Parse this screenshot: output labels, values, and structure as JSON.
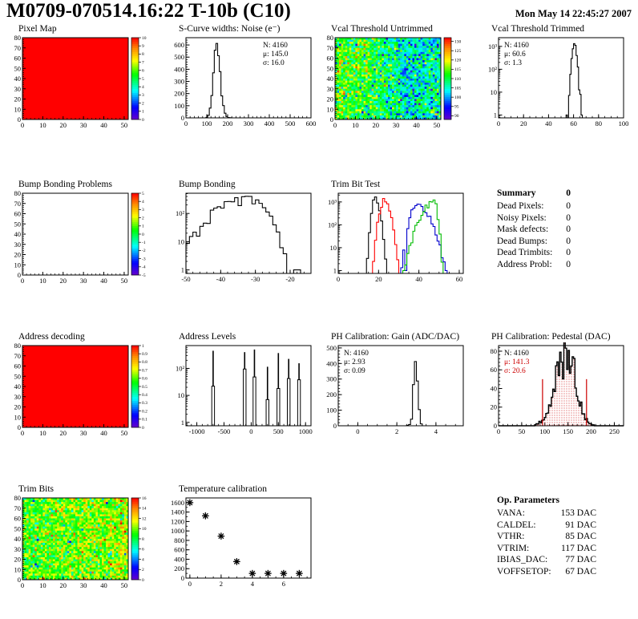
{
  "header": {
    "title": "M0709-070514.16:22 T-10b (C10)",
    "date": "Mon May 14 22:45:27 2007"
  },
  "summary": {
    "title": "Summary",
    "total": "0",
    "rows": [
      {
        "label": "Dead Pixels:",
        "value": "0"
      },
      {
        "label": "Noisy Pixels:",
        "value": "0"
      },
      {
        "label": "Mask defects:",
        "value": "0"
      },
      {
        "label": "Dead Bumps:",
        "value": "0"
      },
      {
        "label": "Dead Trimbits:",
        "value": "0"
      },
      {
        "label": "Address Probl:",
        "value": "0"
      }
    ]
  },
  "op_parameters": {
    "title": "Op. Parameters",
    "rows": [
      {
        "label": "VANA:",
        "value": "153 DAC"
      },
      {
        "label": "CALDEL:",
        "value": "91 DAC"
      },
      {
        "label": "VTHR:",
        "value": "85 DAC"
      },
      {
        "label": "VTRIM:",
        "value": "117 DAC"
      },
      {
        "label": "IBIAS_DAC:",
        "value": "77 DAC"
      },
      {
        "label": "VOFFSETOP:",
        "value": "67 DAC"
      }
    ]
  },
  "chart_data": [
    {
      "id": "pixel-map",
      "type": "heatmap",
      "title": "Pixel Map",
      "mode": "uniform",
      "uniform_value": 1.0,
      "xmax": 52,
      "ymax": 80,
      "xticks": [
        0,
        10,
        20,
        30,
        40,
        50
      ],
      "yticks": [
        0,
        10,
        20,
        30,
        40,
        50,
        60,
        70,
        80
      ],
      "colorbar": {
        "min": 0,
        "max": 10,
        "ticks": [
          {
            "v": 10,
            "l": "10"
          },
          {
            "v": 9,
            "l": "9"
          },
          {
            "v": 8,
            "l": "8"
          },
          {
            "v": 7,
            "l": "7"
          },
          {
            "v": 6,
            "l": "6"
          },
          {
            "v": 5,
            "l": "5"
          },
          {
            "v": 4,
            "l": "4"
          },
          {
            "v": 3,
            "l": "3"
          },
          {
            "v": 2,
            "l": "2"
          },
          {
            "v": 1,
            "l": "1"
          },
          {
            "v": 0,
            "l": "0"
          }
        ]
      }
    },
    {
      "id": "scurve-noise",
      "type": "hist",
      "title": "S-Curve widths: Noise (e⁻)",
      "log": false,
      "xmin": 0,
      "xmax": 600,
      "xticks": [
        0,
        100,
        200,
        300,
        400,
        500,
        600
      ],
      "xminor": 20,
      "ymax": 660,
      "yticks": [
        0,
        100,
        200,
        300,
        400,
        500,
        600
      ],
      "yminor": 20,
      "series": [
        {
          "color": "#000000",
          "mu": 145,
          "sigmaL": 14,
          "sigmaR": 18,
          "peak": 645,
          "binw": 8,
          "noise": 0.18,
          "seed": 11
        }
      ],
      "stats": {
        "side": "right",
        "lines": [
          {
            "text": "N: 4160",
            "color": "#000000"
          },
          {
            "text": "μ: 145.0",
            "color": "#000000"
          },
          {
            "text": "σ: 16.0",
            "color": "#000000"
          }
        ]
      }
    },
    {
      "id": "vcal-threshold-untrimmed",
      "type": "heatmap",
      "title": "Vcal Threshold Untrimmed",
      "mode": "noise",
      "seed": 42,
      "base": 110,
      "sd": 5.5,
      "cmin": 88,
      "cmax": 132,
      "xmax": 52,
      "ymax": 80,
      "xticks": [
        0,
        10,
        20,
        30,
        40,
        50
      ],
      "yticks": [
        0,
        10,
        20,
        30,
        40,
        50,
        60,
        70,
        80
      ],
      "colorbar": {
        "min": 88,
        "max": 132,
        "ticks": [
          {
            "v": 130,
            "l": "130"
          },
          {
            "v": 125,
            "l": "125"
          },
          {
            "v": 120,
            "l": "120"
          },
          {
            "v": 115,
            "l": "115"
          },
          {
            "v": 110,
            "l": "110"
          },
          {
            "v": 105,
            "l": "105"
          },
          {
            "v": 100,
            "l": "100"
          },
          {
            "v": 95,
            "l": "95"
          },
          {
            "v": 90,
            "l": "90"
          }
        ]
      }
    },
    {
      "id": "vcal-threshold-trimmed",
      "type": "hist",
      "title": "Vcal Threshold Trimmed",
      "log": true,
      "xmin": 0,
      "xmax": 100,
      "xticks": [
        0,
        20,
        40,
        60,
        80,
        100
      ],
      "xminor": 5,
      "ylim": [
        0.75,
        2400
      ],
      "log_ticks": [
        {
          "v": 1,
          "l": "1"
        },
        {
          "v": 10,
          "l": "10"
        },
        {
          "v": 100,
          "l": "10²"
        },
        {
          "v": 1000,
          "l": "10³"
        }
      ],
      "series": [
        {
          "color": "#000000",
          "mu": 60.6,
          "sigmaL": 1.3,
          "sigmaR": 1.3,
          "peak": 1276,
          "binw": 1,
          "noise": 0.2,
          "seed": 21,
          "extra": [
            [
              54,
              1
            ],
            [
              65,
              8
            ],
            [
              66,
              1
            ]
          ]
        }
      ],
      "stats": {
        "side": "left",
        "lines": [
          {
            "text": "N: 4160",
            "color": "#000000"
          },
          {
            "text": "μ: 60.6",
            "color": "#000000"
          },
          {
            "text": "σ:  1.3",
            "color": "#000000"
          }
        ]
      }
    },
    {
      "id": "bump-bonding-problems",
      "type": "heatmap",
      "title": "Bump Bonding Problems",
      "mode": "empty",
      "xmax": 52,
      "ymax": 80,
      "xticks": [
        0,
        10,
        20,
        30,
        40,
        50
      ],
      "yticks": [
        0,
        10,
        20,
        30,
        40,
        50,
        60,
        70,
        80
      ],
      "colorbar": {
        "min": -5,
        "max": 5,
        "ticks": [
          {
            "v": 5,
            "l": "5"
          },
          {
            "v": 4,
            "l": "4"
          },
          {
            "v": 3,
            "l": "3"
          },
          {
            "v": 2,
            "l": "2"
          },
          {
            "v": 1,
            "l": "1"
          },
          {
            "v": 0,
            "l": "0"
          },
          {
            "v": -1,
            "l": "-1"
          },
          {
            "v": -2,
            "l": "-2"
          },
          {
            "v": -3,
            "l": "-3"
          },
          {
            "v": -4,
            "l": "-4"
          },
          {
            "v": -5,
            "l": "-5"
          }
        ]
      }
    },
    {
      "id": "bump-bonding",
      "type": "hist",
      "title": "Bump Bonding",
      "log": true,
      "xmin": -50,
      "xmax": -14,
      "xticks": [
        -50,
        -40,
        -30,
        -20
      ],
      "xminor": 2,
      "ylim": [
        0.75,
        520
      ],
      "log_ticks": [
        {
          "v": 1,
          "l": "1"
        },
        {
          "v": 10,
          "l": "10"
        },
        {
          "v": 100,
          "l": "10²"
        }
      ],
      "series": [
        {
          "color": "#000000",
          "mu": -33,
          "sigmaL": 6,
          "sigmaR": 4,
          "peak": 330,
          "binw": 1,
          "noise": 0.45,
          "seed": 31,
          "extra": [
            [
              -21,
              0
            ],
            [
              -20,
              0
            ],
            [
              -19,
              1
            ],
            [
              -18,
              1
            ],
            [
              -17,
              0
            ]
          ]
        }
      ]
    },
    {
      "id": "trim-bit-test",
      "type": "hist",
      "title": "Trim Bit Test",
      "log": true,
      "xmin": 0,
      "xmax": 62,
      "xticks": [
        0,
        20,
        40,
        60
      ],
      "xminor": 5,
      "ylim": [
        0.75,
        2400
      ],
      "log_ticks": [
        {
          "v": 1,
          "l": "1"
        },
        {
          "v": 10,
          "l": "10"
        },
        {
          "v": 100,
          "l": "10²"
        },
        {
          "v": 1000,
          "l": "10³"
        }
      ],
      "series": [
        {
          "color": "#000000",
          "mu": 18.3,
          "sigmaL": 1.1,
          "sigmaR": 1.5,
          "peak": 1400,
          "binw": 1,
          "noise": 0.3,
          "seed": 41
        },
        {
          "color": "#ff0000",
          "mu": 22.8,
          "sigmaL": 1.5,
          "sigmaR": 1.9,
          "peak": 1150,
          "binw": 1,
          "noise": 0.3,
          "seed": 43
        },
        {
          "color": "#0000cc",
          "mu": 38.8,
          "sigmaL": 2.1,
          "sigmaR": 4.0,
          "peak": 780,
          "binw": 1,
          "noise": 0.3,
          "seed": 47,
          "extra": [
            [
              33,
              1
            ]
          ]
        },
        {
          "color": "#00bb00",
          "mu": 47.6,
          "sigmaL": 4.0,
          "sigmaR": 1.1,
          "peak": 1000,
          "binw": 1,
          "noise": 0.3,
          "seed": 53
        }
      ]
    },
    {
      "id": "address-decoding",
      "type": "heatmap",
      "title": "Address decoding",
      "mode": "uniform",
      "uniform_value": 1.0,
      "xmax": 52,
      "ymax": 80,
      "xticks": [
        0,
        10,
        20,
        30,
        40,
        50
      ],
      "yticks": [
        0,
        10,
        20,
        30,
        40,
        50,
        60,
        70,
        80
      ],
      "colorbar": {
        "min": 0,
        "max": 1,
        "ticks": [
          {
            "v": 1,
            "l": "1"
          },
          {
            "v": 0.9,
            "l": "0.9"
          },
          {
            "v": 0.8,
            "l": "0.8"
          },
          {
            "v": 0.7,
            "l": "0.7"
          },
          {
            "v": 0.6,
            "l": "0.6"
          },
          {
            "v": 0.5,
            "l": "0.5"
          },
          {
            "v": 0.4,
            "l": "0.4"
          },
          {
            "v": 0.3,
            "l": "0.3"
          },
          {
            "v": 0.2,
            "l": "0.2"
          },
          {
            "v": 0.1,
            "l": "0.1"
          },
          {
            "v": 0,
            "l": "0"
          }
        ]
      }
    },
    {
      "id": "address-levels",
      "type": "spikes",
      "title": "Address Levels",
      "log": true,
      "xmin": -1200,
      "xmax": 1100,
      "xticks": [
        -1000,
        -500,
        0,
        500,
        1000
      ],
      "xminor": 100,
      "ylim": [
        0.75,
        700
      ],
      "log_ticks": [
        {
          "v": 1,
          "l": "1"
        },
        {
          "v": 10,
          "l": "10"
        },
        {
          "v": 100,
          "l": "10²"
        }
      ],
      "spikes": [
        {
          "x": -700,
          "top": 450,
          "mid": 22
        },
        {
          "x": -120,
          "top": 400,
          "mid": 95
        },
        {
          "x": 60,
          "top": 500,
          "mid": 48
        },
        {
          "x": 300,
          "top": 115,
          "mid": 7
        },
        {
          "x": 500,
          "top": 370,
          "mid": 18
        },
        {
          "x": 690,
          "top": 225,
          "mid": 42
        },
        {
          "x": 880,
          "top": 155,
          "mid": 38
        }
      ],
      "w_mid": 25,
      "w_top": 7
    },
    {
      "id": "ph-calibration-gain",
      "type": "hist",
      "title": "PH Calibration: Gain (ADC/DAC)",
      "log": false,
      "xmin": -1,
      "xmax": 5.4,
      "xticks": [
        0,
        2,
        4
      ],
      "xminor": 0.5,
      "ymax": 515,
      "yticks": [
        0,
        100,
        200,
        300,
        400,
        500
      ],
      "yminor": 20,
      "series": [
        {
          "color": "#000000",
          "mu": 2.95,
          "sigmaL": 0.09,
          "sigmaR": 0.11,
          "peak": 490,
          "binw": 0.1,
          "noise": 0.2,
          "seed": 61,
          "extra": [
            [
              2.5,
              3
            ],
            [
              2.6,
              8
            ]
          ]
        }
      ],
      "stats": {
        "side": "left",
        "lines": [
          {
            "text": "N: 4160",
            "color": "#000000"
          },
          {
            "text": "μ: 2.93",
            "color": "#000000"
          },
          {
            "text": "σ: 0.09",
            "color": "#000000"
          }
        ]
      }
    },
    {
      "id": "ph-calibration-pedestal",
      "type": "hist",
      "title": "PH Calibration: Pedestal (DAC)",
      "log": false,
      "xmin": 0,
      "xmax": 270,
      "xticks": [
        0,
        50,
        100,
        150,
        200,
        250
      ],
      "xminor": 10,
      "ymax": 86,
      "yticks": [
        0,
        20,
        40,
        60,
        80
      ],
      "yminor": 4,
      "series": [
        {
          "color": "#000000",
          "mu": 148,
          "sigmaL": 24,
          "sigmaR": 19,
          "peak": 78,
          "binw": 3,
          "noise": 0.4,
          "seed": 71,
          "fill": "dots",
          "lw": 1.4
        }
      ],
      "marks": [
        {
          "x": 95,
          "h": 50,
          "color": "#cc0000"
        },
        {
          "x": 190,
          "h": 50,
          "color": "#cc0000"
        }
      ],
      "stats": {
        "side": "left",
        "lines": [
          {
            "text": "N: 4160",
            "color": "#000000"
          },
          {
            "text": "μ: 141.3",
            "color": "#cc0000"
          },
          {
            "text": "σ: 20.6",
            "color": "#cc0000"
          }
        ]
      }
    },
    {
      "id": "trim-bits",
      "type": "heatmap",
      "title": "Trim Bits",
      "mode": "noise",
      "seed": 7,
      "base": 9.2,
      "sd": 1.6,
      "cmin": 0,
      "cmax": 16,
      "xmax": 52,
      "ymax": 80,
      "xticks": [
        0,
        10,
        20,
        30,
        40,
        50
      ],
      "yticks": [
        0,
        10,
        20,
        30,
        40,
        50,
        60,
        70,
        80
      ],
      "colorbar": {
        "min": 0,
        "max": 16,
        "ticks": [
          {
            "v": 16,
            "l": "16"
          },
          {
            "v": 14,
            "l": "14"
          },
          {
            "v": 12,
            "l": "12"
          },
          {
            "v": 10,
            "l": "10"
          },
          {
            "v": 8,
            "l": "8"
          },
          {
            "v": 6,
            "l": "6"
          },
          {
            "v": 4,
            "l": "4"
          },
          {
            "v": 2,
            "l": "2"
          },
          {
            "v": 0,
            "l": "0"
          }
        ]
      }
    },
    {
      "id": "temperature-calibration",
      "type": "scatter",
      "title": "Temperature calibration",
      "xmin": -0.25,
      "xmax": 7.75,
      "xticks": [
        0,
        2,
        4,
        6
      ],
      "xminor": 0.5,
      "ymax": 1700,
      "yticks": [
        0,
        200,
        400,
        600,
        800,
        1000,
        1200,
        1400,
        1600
      ],
      "yminor": 100,
      "points": [
        [
          0,
          1600
        ],
        [
          1,
          1320
        ],
        [
          2,
          890
        ],
        [
          3,
          350
        ],
        [
          4,
          100
        ],
        [
          5,
          100
        ],
        [
          6,
          100
        ],
        [
          7,
          100
        ]
      ]
    }
  ]
}
